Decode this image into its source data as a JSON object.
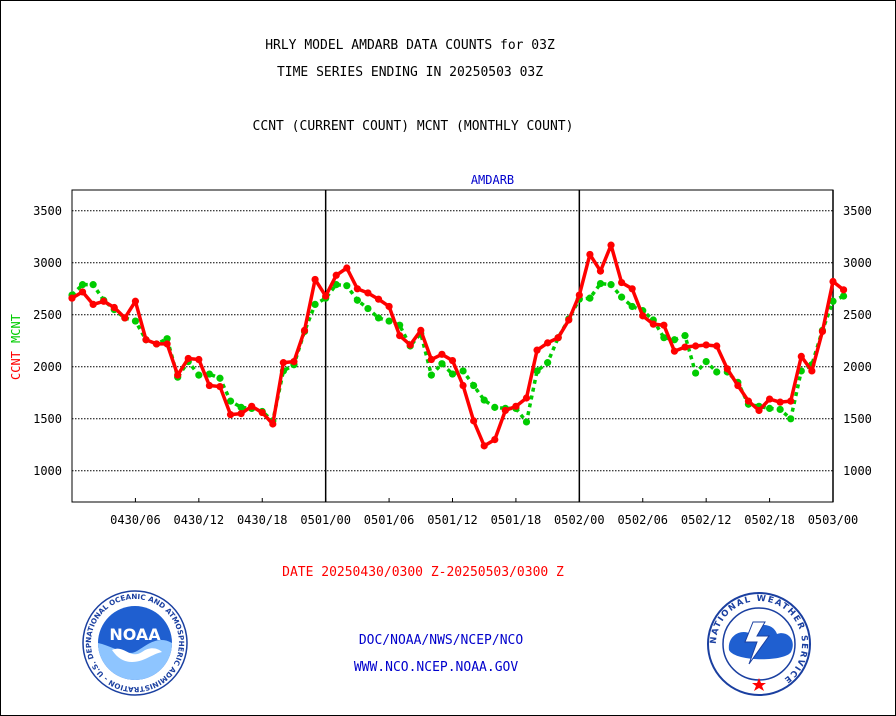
{
  "page": {
    "title_line1": "HRLY MODEL AMDARB DATA COUNTS for 03Z",
    "title_line2": "TIME SERIES ENDING IN 20250503 03Z",
    "title_line3": "CCNT (CURRENT COUNT) MCNT (MONTHLY COUNT)",
    "date_range": "DATE 20250430/0300 Z-20250503/0300 Z",
    "link_line1": "DOC/NOAA/NWS/NCEP/NCO",
    "link_line2": "WWW.NCO.NCEP.NOAA.GOV",
    "noaa_logo": {
      "icon": "noaa-logo",
      "text": "NOAA",
      "ring_text": "NATIONAL OCEANIC AND ATMOSPHERIC ADMINISTRATION - U.S. DEPARTMENT OF COMMERCE"
    },
    "nws_logo": {
      "icon": "nws-logo",
      "ring_text": "NATIONAL WEATHER SERVICE"
    }
  },
  "chart_data": {
    "type": "line",
    "plot_label": "AMDARB",
    "ylabel_ccnt": "CCNT",
    "ylabel_mcnt": "MCNT",
    "ylim": [
      700,
      3700
    ],
    "yticks": [
      1000,
      1500,
      2000,
      2500,
      3000,
      3500
    ],
    "grid": true,
    "x_start": "2025-04-30 03Z",
    "x_end": "2025-05-03 03Z",
    "x_step_hours": 1,
    "xtick_labels": [
      {
        "label": "0430/06",
        "hour": 6
      },
      {
        "label": "0430/12",
        "hour": 12
      },
      {
        "label": "0430/18",
        "hour": 18
      },
      {
        "label": "0501/00",
        "hour": 24
      },
      {
        "label": "0501/06",
        "hour": 30
      },
      {
        "label": "0501/12",
        "hour": 36
      },
      {
        "label": "0501/18",
        "hour": 42
      },
      {
        "label": "0502/00",
        "hour": 48
      },
      {
        "label": "0502/06",
        "hour": 54
      },
      {
        "label": "0502/12",
        "hour": 60
      },
      {
        "label": "0502/18",
        "hour": 66
      },
      {
        "label": "0503/00",
        "hour": 72
      }
    ],
    "day_boundaries_hour": [
      24,
      48,
      72
    ],
    "series": [
      {
        "name": "CCNT",
        "color": "#ff0000",
        "values": [
          2660,
          2720,
          2600,
          2630,
          2570,
          2470,
          2630,
          2260,
          2220,
          2220,
          1920,
          2080,
          2070,
          1820,
          1810,
          1540,
          1550,
          1620,
          1560,
          1450,
          2040,
          2050,
          2350,
          2840,
          2680,
          2880,
          2950,
          2750,
          2710,
          2650,
          2580,
          2300,
          2210,
          2350,
          2070,
          2120,
          2060,
          1820,
          1480,
          1240,
          1300,
          1580,
          1620,
          1700,
          2160,
          2230,
          2280,
          2450,
          2690,
          3080,
          2920,
          3170,
          2810,
          2750,
          2490,
          2410,
          2400,
          2150,
          2190,
          2200,
          2210,
          2200,
          1980,
          1820,
          1670,
          1580,
          1690,
          1660,
          1670,
          2100,
          1960,
          2340,
          2820,
          2740
        ]
      },
      {
        "name": "MCNT",
        "color": "#00cc00",
        "values": [
          2690,
          2790,
          2790,
          2640,
          2550,
          2470,
          2440,
          2260,
          2220,
          2270,
          1900,
          2050,
          1920,
          1930,
          1890,
          1670,
          1610,
          1600,
          1570,
          1480,
          1960,
          2020,
          2340,
          2600,
          2660,
          2790,
          2780,
          2640,
          2560,
          2470,
          2440,
          2400,
          2200,
          2320,
          1920,
          2030,
          1930,
          1960,
          1820,
          1680,
          1610,
          1600,
          1600,
          1470,
          1960,
          2040,
          2280,
          2460,
          2650,
          2660,
          2800,
          2790,
          2670,
          2580,
          2540,
          2450,
          2280,
          2260,
          2300,
          1940,
          2050,
          1950,
          1950,
          1850,
          1640,
          1620,
          1600,
          1590,
          1500,
          1960,
          2020,
          2350,
          2630,
          2680
        ]
      }
    ]
  }
}
